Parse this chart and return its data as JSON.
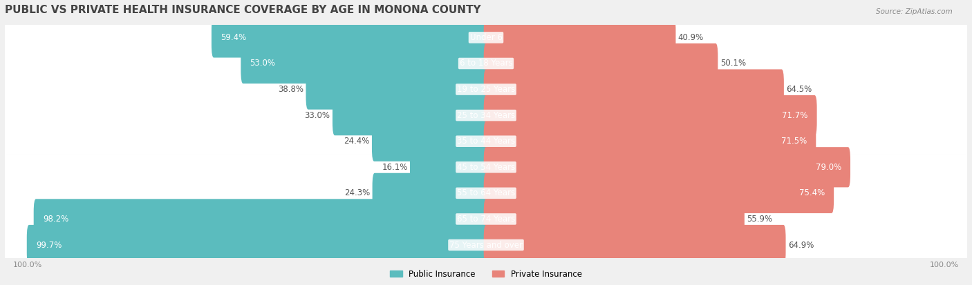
{
  "title": "PUBLIC VS PRIVATE HEALTH INSURANCE COVERAGE BY AGE IN MONONA COUNTY",
  "source": "Source: ZipAtlas.com",
  "categories": [
    "Under 6",
    "6 to 18 Years",
    "19 to 25 Years",
    "25 to 34 Years",
    "35 to 44 Years",
    "45 to 54 Years",
    "55 to 64 Years",
    "65 to 74 Years",
    "75 Years and over"
  ],
  "public_values": [
    59.4,
    53.0,
    38.8,
    33.0,
    24.4,
    16.1,
    24.3,
    98.2,
    99.7
  ],
  "private_values": [
    40.9,
    50.1,
    64.5,
    71.7,
    71.5,
    79.0,
    75.4,
    55.9,
    64.9
  ],
  "public_color": "#5bbcbe",
  "private_color": "#e8847a",
  "background_color": "#f0f0f0",
  "row_bg_color": "#ffffff",
  "bar_height": 0.55,
  "xlim_left": 100,
  "xlim_right": 100,
  "title_fontsize": 11,
  "label_fontsize": 8.5,
  "tick_fontsize": 8,
  "legend_fontsize": 8.5
}
